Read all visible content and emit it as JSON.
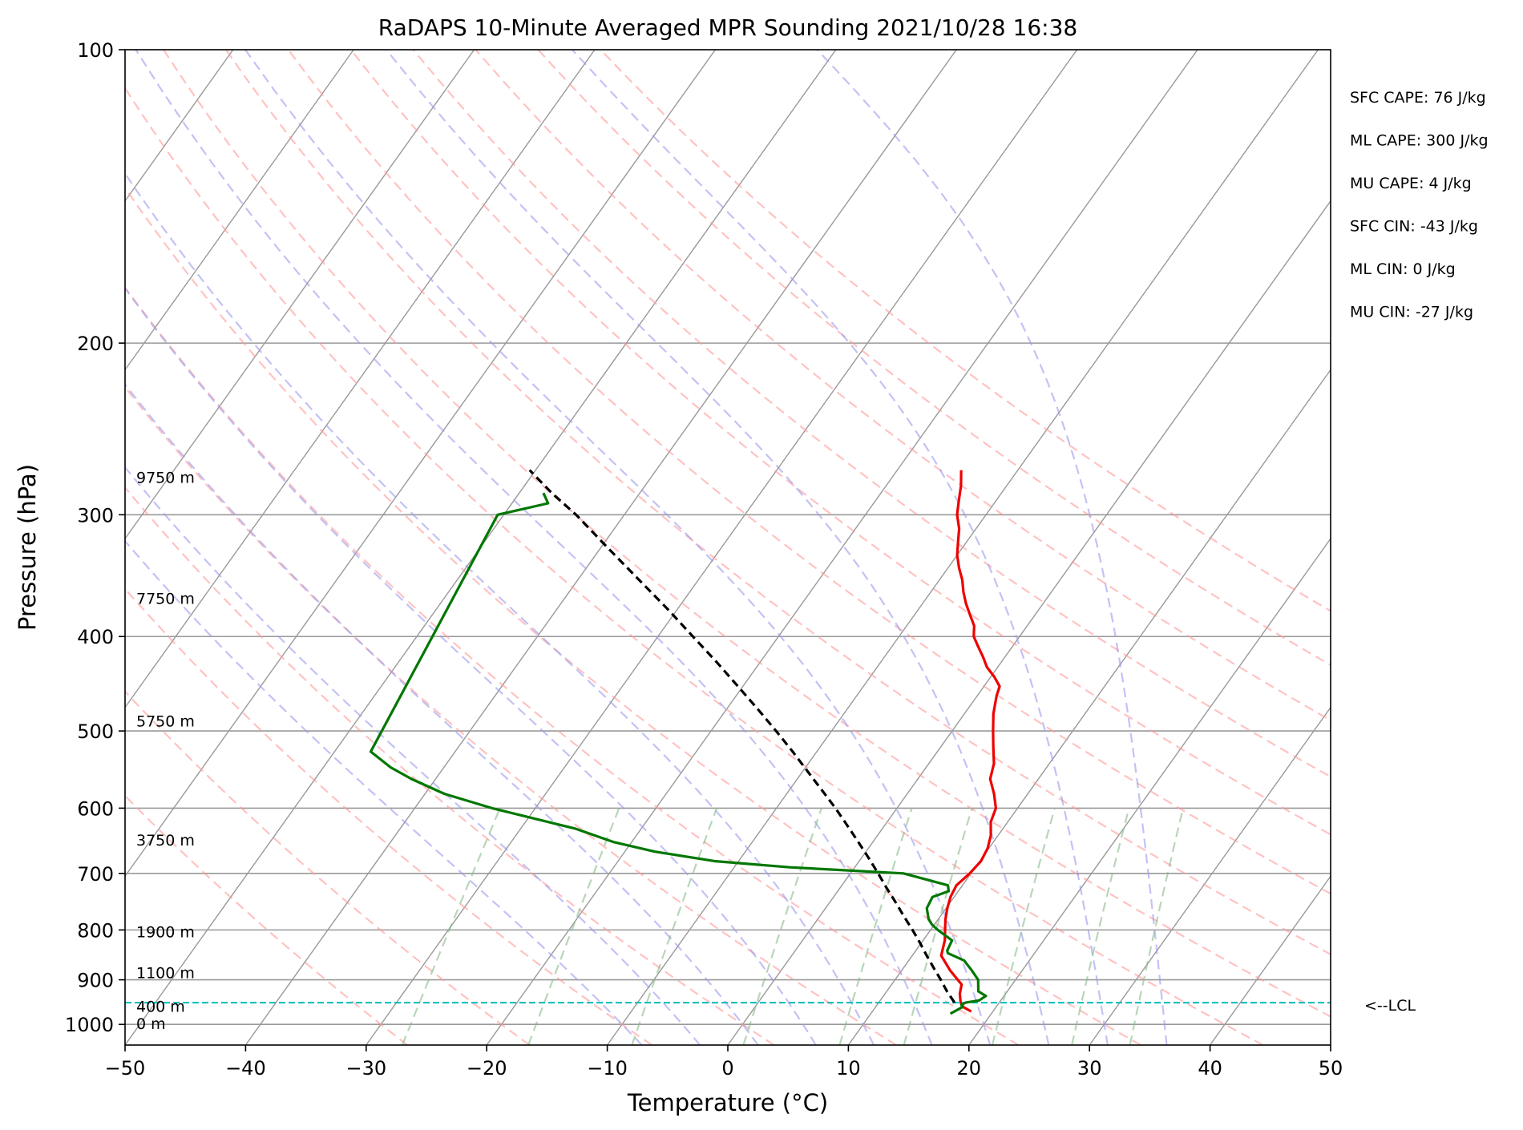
{
  "chart_data": {
    "type": "skew-t",
    "title": "RaDAPS 10-Minute Averaged MPR Sounding 2021/10/28 16:38",
    "xlabel": "Temperature (°C)",
    "ylabel": "Pressure (hPa)",
    "xlim": [
      -50,
      50
    ],
    "ylim": [
      1050,
      100
    ],
    "y_scale": "log",
    "skew": 35,
    "x_ticks": [
      -50,
      -40,
      -30,
      -20,
      -10,
      0,
      10,
      20,
      30,
      40,
      50
    ],
    "x_tick_labels": [
      "−50",
      "−40",
      "−30",
      "−20",
      "−10",
      "0",
      "10",
      "20",
      "30",
      "40",
      "50"
    ],
    "y_ticks": [
      100,
      200,
      300,
      400,
      500,
      600,
      700,
      800,
      900,
      1000
    ],
    "y_tick_labels": [
      "100",
      "200",
      "300",
      "400",
      "500",
      "600",
      "700",
      "800",
      "900",
      "1000"
    ],
    "grid": true,
    "colors": {
      "temperature": "#ee0000",
      "dewpoint": "#007700",
      "parcel": "#000000",
      "dry_adiabats": "#ff9999",
      "moist_adiabats": "#9999ee",
      "mixing_ratio": "#88bb88",
      "isotherms": "#999999",
      "lcl_line": "#00bbbb"
    },
    "series": [
      {
        "key": "temperature",
        "pressure": [
          970,
          960,
          950,
          930,
          910,
          880,
          850,
          820,
          800,
          780,
          760,
          740,
          720,
          700,
          680,
          660,
          640,
          620,
          600,
          580,
          560,
          540,
          520,
          500,
          480,
          460,
          450,
          440,
          430,
          420,
          410,
          400,
          390,
          380,
          370,
          360,
          350,
          340,
          330,
          320,
          310,
          300,
          290,
          280,
          270
        ],
        "values": [
          18.2,
          17.3,
          16.8,
          16.2,
          15.8,
          14.0,
          12.4,
          11.8,
          11.2,
          10.6,
          10.1,
          9.7,
          9.5,
          9.9,
          10.1,
          9.9,
          9.4,
          8.6,
          8.2,
          7.2,
          6.0,
          5.4,
          4.4,
          3.4,
          2.4,
          1.6,
          1.3,
          0.3,
          -0.9,
          -1.8,
          -2.8,
          -3.8,
          -4.4,
          -5.4,
          -6.4,
          -7.3,
          -8.1,
          -9.1,
          -10.0,
          -10.7,
          -11.4,
          -12.4,
          -13.1,
          -13.8,
          -14.7
        ]
      },
      {
        "key": "dewpoint",
        "pressure": [
          975,
          960,
          955,
          950,
          945,
          935,
          925,
          900,
          880,
          860,
          845,
          840,
          820,
          800,
          790,
          780,
          760,
          740,
          730,
          720,
          700,
          690,
          680,
          665,
          650,
          630,
          600,
          580,
          560,
          545,
          525,
          300,
          292,
          285
        ],
        "values": [
          16.6,
          17.2,
          17.0,
          17.2,
          18.2,
          18.5,
          17.6,
          16.9,
          15.8,
          14.6,
          12.8,
          12.6,
          12.4,
          10.6,
          9.8,
          9.2,
          8.4,
          8.2,
          9.2,
          8.8,
          4.4,
          -5.4,
          -12.0,
          -17.5,
          -21.5,
          -25.4,
          -33.6,
          -38.4,
          -42.0,
          -44.4,
          -47.0,
          -50.5,
          -47.0,
          -48.0
        ]
      },
      {
        "key": "parcel",
        "pressure": [
          950,
          925,
          900,
          875,
          850,
          825,
          800,
          775,
          750,
          725,
          700,
          675,
          650,
          625,
          600,
          575,
          550,
          525,
          500,
          475,
          450,
          425,
          400,
          375,
          350,
          325,
          300,
          285,
          270
        ],
        "values": [
          16.3,
          15.0,
          13.8,
          12.5,
          11.2,
          9.9,
          8.5,
          7.0,
          5.5,
          3.9,
          2.3,
          0.6,
          -1.2,
          -3.1,
          -5.1,
          -7.3,
          -9.6,
          -12.0,
          -14.6,
          -17.4,
          -20.4,
          -23.6,
          -27.1,
          -30.8,
          -34.9,
          -39.3,
          -44.0,
          -47.3,
          -50.5
        ]
      }
    ],
    "height_labels": [
      {
        "label": "9750 m",
        "pressure": 275
      },
      {
        "label": "7750 m",
        "pressure": 366
      },
      {
        "label": "5750 m",
        "pressure": 489
      },
      {
        "label": "3750 m",
        "pressure": 648
      },
      {
        "label": "1900 m",
        "pressure": 805
      },
      {
        "label": "1100 m",
        "pressure": 886
      },
      {
        "label": "400 m",
        "pressure": 960
      },
      {
        "label": "0 m",
        "pressure": 1000
      }
    ],
    "lcl": {
      "pressure": 950,
      "label": "<--LCL"
    },
    "indices": [
      "SFC CAPE: 76 J/kg",
      "ML CAPE: 300 J/kg",
      "MU CAPE: 4 J/kg",
      "SFC CIN: -43 J/kg",
      "ML CIN: 0 J/kg",
      "MU CIN: -27 J/kg"
    ],
    "dry_adiabat_thetas_c": [
      -30,
      -20,
      -10,
      0,
      10,
      20,
      30,
      40,
      50,
      60,
      70,
      80,
      90,
      100,
      110,
      120
    ],
    "moist_adiabat_start_c": [
      -10,
      -5,
      0,
      5,
      10,
      15,
      20,
      25,
      30,
      35
    ],
    "mixing_ratio_gkg": [
      0.4,
      1,
      2,
      4,
      7,
      10,
      16,
      24,
      32
    ],
    "mixing_ratio_ptop": 600
  }
}
